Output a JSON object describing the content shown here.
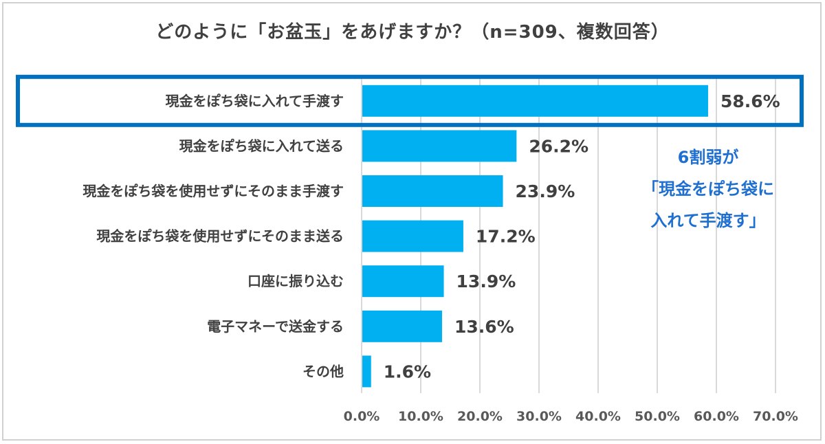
{
  "chart_data": {
    "type": "bar",
    "orientation": "horizontal",
    "title": "どのように「お盆玉」をあげますか？（n=309、複数回答）",
    "categories": [
      "現金をぽち袋に入れて手渡す",
      "現金をぽち袋に入れて送る",
      "現金をぽち袋を使用せずにそのまま手渡す",
      "現金をぽち袋を使用せずにそのまま送る",
      "口座に振り込む",
      "電子マネーで送金する",
      "その他"
    ],
    "values": [
      58.6,
      26.2,
      23.9,
      17.2,
      13.9,
      13.6,
      1.6
    ],
    "value_labels": [
      "58.6%",
      "26.2%",
      "23.9%",
      "17.2%",
      "13.9%",
      "13.6%",
      "1.6%"
    ],
    "xlim": [
      0,
      70
    ],
    "xticks": [
      "0.0%",
      "10.0%",
      "20.0%",
      "30.0%",
      "40.0%",
      "50.0%",
      "60.0%",
      "70.0%"
    ],
    "grid": "vertical",
    "highlight_index": 0,
    "bar_color": "#00b0f0",
    "highlight_color": "#0070c0",
    "annotation": [
      "6割弱が",
      "「現金をぽち袋に",
      "入れて手渡す」"
    ]
  }
}
